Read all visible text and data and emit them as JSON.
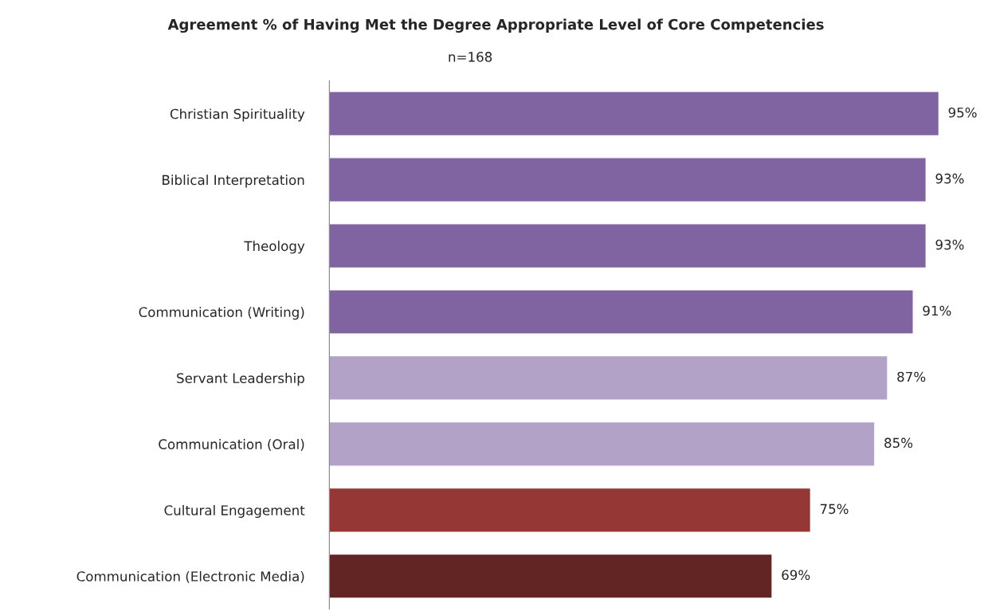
{
  "chart_data": {
    "type": "bar",
    "orientation": "horizontal",
    "title": "Agreement % of Having Met the Degree Appropriate Level of Core Competencies",
    "subtitle": "n=168",
    "categories": [
      "Christian Spirituality",
      "Biblical Interpretation",
      "Theology",
      "Communication (Writing)",
      "Servant Leadership",
      "Communication (Oral)",
      "Cultural Engagement",
      "Communication (Electronic Media)"
    ],
    "values": [
      95,
      93,
      93,
      91,
      87,
      85,
      75,
      69
    ],
    "colors": [
      "#8064a2",
      "#8064a2",
      "#8064a2",
      "#8064a2",
      "#b2a2c7",
      "#b2a2c7",
      "#953735",
      "#632523"
    ],
    "value_labels": [
      "95%",
      "93%",
      "93%",
      "91%",
      "87%",
      "85%",
      "75%",
      "69%"
    ],
    "tick_labels": "y",
    "grid": false,
    "legend": false
  }
}
